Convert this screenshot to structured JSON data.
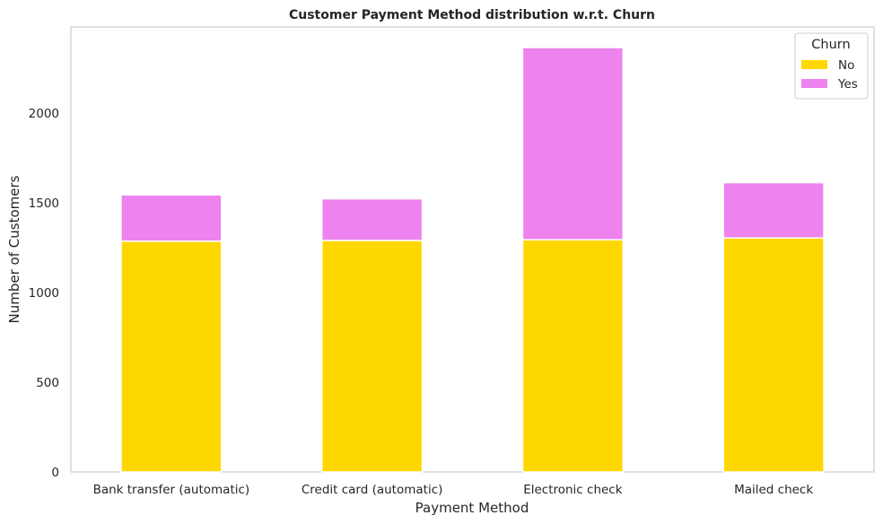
{
  "chart_data": {
    "type": "bar",
    "stacked": true,
    "title": "Customer Payment Method distribution w.r.t. Churn",
    "xlabel": "Payment Method",
    "ylabel": "Number of Customers",
    "categories": [
      "Bank transfer (automatic)",
      "Credit card (automatic)",
      "Electronic check",
      "Mailed check"
    ],
    "series": [
      {
        "name": "No",
        "color": "#FFD700",
        "values": [
          1286,
          1290,
          1294,
          1304
        ]
      },
      {
        "name": "Yes",
        "color": "#EE82EE",
        "values": [
          258,
          232,
          1071,
          308
        ]
      }
    ],
    "ylim": [
      0,
      2480
    ],
    "yticks": [
      0,
      500,
      1000,
      1500,
      2000
    ],
    "grid": false,
    "legend": {
      "title": "Churn",
      "position": "top-right"
    }
  }
}
